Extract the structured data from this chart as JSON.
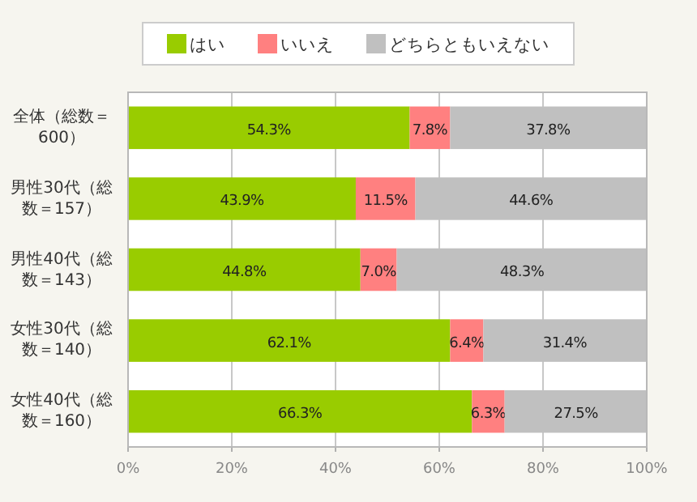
{
  "chart_data": {
    "type": "bar",
    "orientation": "horizontal",
    "stacked": true,
    "categories": [
      "全体（総数＝600）",
      "男性30代（総数＝157）",
      "男性40代（総数＝143）",
      "女性30代（総数＝140）",
      "女性40代（総数＝160）"
    ],
    "series": [
      {
        "name": "はい",
        "color": "#99cc00",
        "values": [
          54.3,
          43.9,
          44.8,
          62.1,
          66.3
        ],
        "value_labels": [
          "54.3%",
          "43.9%",
          "44.8%",
          "62.1%",
          "66.3%"
        ]
      },
      {
        "name": "いいえ",
        "color": "#ff8080",
        "values": [
          7.8,
          11.5,
          7.0,
          6.4,
          6.3
        ],
        "value_labels": [
          "7.8%",
          "11.5%",
          "7.0%",
          "6.4%",
          "6.3%"
        ]
      },
      {
        "name": "どちらともいえない",
        "color": "#c0c0c0",
        "values": [
          37.8,
          44.6,
          48.3,
          31.4,
          27.5
        ],
        "value_labels": [
          "37.8%",
          "44.6%",
          "48.3%",
          "31.4%",
          "27.5%"
        ]
      }
    ],
    "xlim": [
      0,
      100
    ],
    "xticks": [
      {
        "value": 0,
        "label": "0%"
      },
      {
        "value": 20,
        "label": "20%"
      },
      {
        "value": 40,
        "label": "40%"
      },
      {
        "value": 60,
        "label": "60%"
      },
      {
        "value": 80,
        "label": "80%"
      },
      {
        "value": 100,
        "label": "100%"
      }
    ],
    "grid": "x",
    "legend": "top"
  }
}
